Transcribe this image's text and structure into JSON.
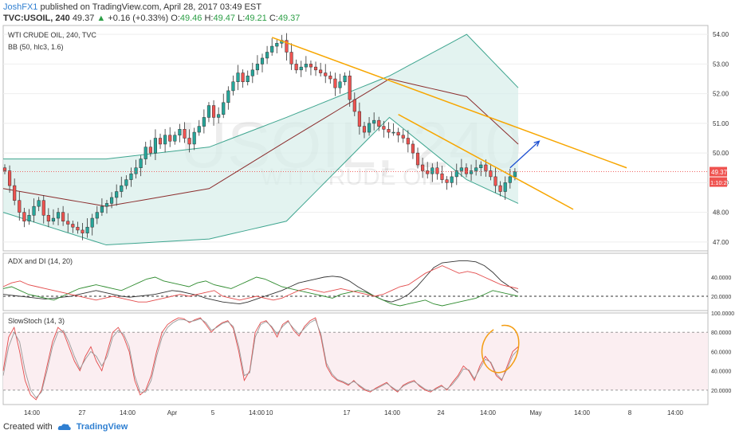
{
  "header": {
    "author": "JoshFX1",
    "published_text": "published on TradingView.com, April 28, 2017 03:49 EST",
    "symbol": "TVC:USOIL, 240",
    "last": "49.37",
    "change_arrow": "▲",
    "change": "+0.16 (+0.33%)",
    "open_label": "O:",
    "open": "49.46",
    "high_label": "H:",
    "high": "49.47",
    "low_label": "L:",
    "low": "49.21",
    "close_label": "C:",
    "close": "49.37"
  },
  "footer": {
    "created_with": "Created with",
    "brand": "TradingView"
  },
  "watermark": {
    "ticker": "USOIL, 240",
    "name": "WTI CRUDE OIL"
  },
  "colors": {
    "up": "#26a69a",
    "down": "#ef5350",
    "bb": "#3ea58f",
    "bb_fill": "#d7eee9",
    "bb_mid": "#8b2d2d",
    "trend": "#f7a600",
    "arrow": "#1e50d2",
    "adx": "#333333",
    "plus_di": "#2e8b2e",
    "minus_di": "#e34b4b",
    "stoch_k": "#e34b4b",
    "stoch_d": "#999999",
    "stoch_fill": "#fbeef1",
    "price_tag": "#ef5350",
    "highlight": "#f39c12"
  },
  "chart_data": [
    {
      "type": "candlestick",
      "title": "WTI CRUDE OIL, 240, TVC",
      "indicator_label": "BB (50, hlc3, 1.6)",
      "ylim": [
        46.7,
        54.3
      ],
      "yticks": [
        "47.00",
        "48.00",
        "49.00",
        "50.00",
        "51.00",
        "52.00",
        "53.00",
        "54.00"
      ],
      "xlabels": [
        "14:00",
        "27",
        "14:00",
        "Apr",
        "5",
        "14:00",
        "10",
        "17",
        "14:00",
        "24",
        "14:00",
        "May",
        "14:00",
        "8",
        "14:00"
      ],
      "last_price": "49.37",
      "countdown": "1:10:29",
      "closes": [
        49.4,
        48.9,
        48.4,
        48.0,
        47.7,
        47.9,
        48.2,
        48.4,
        47.9,
        47.7,
        47.8,
        48.0,
        47.7,
        47.6,
        47.5,
        47.4,
        47.3,
        47.5,
        47.8,
        48.0,
        48.2,
        48.3,
        48.5,
        48.7,
        48.9,
        49.1,
        49.3,
        49.5,
        49.8,
        50.2,
        50.0,
        50.5,
        50.3,
        50.6,
        50.4,
        50.6,
        50.8,
        50.5,
        50.3,
        50.7,
        50.9,
        51.2,
        51.6,
        51.2,
        51.3,
        51.7,
        52.1,
        52.4,
        52.7,
        52.4,
        52.6,
        52.8,
        53.0,
        53.2,
        53.4,
        53.6,
        53.7,
        53.8,
        53.4,
        53.0,
        52.8,
        52.9,
        53.0,
        52.9,
        52.8,
        52.7,
        52.6,
        52.5,
        52.2,
        52.4,
        52.6,
        51.8,
        51.4,
        50.9,
        50.7,
        51.0,
        51.1,
        50.9,
        50.8,
        50.7,
        50.7,
        50.6,
        50.5,
        50.3,
        50.0,
        49.6,
        49.4,
        49.3,
        49.5,
        49.3,
        49.1,
        49.0,
        49.2,
        49.4,
        49.5,
        49.3,
        49.4,
        49.5,
        49.6,
        49.4,
        49.2,
        48.9,
        48.7,
        49.0,
        49.2,
        49.37
      ],
      "bb_upper": {
        "x": [
          0,
          0.2,
          0.4,
          0.55,
          0.75,
          0.9,
          1.0
        ],
        "y": [
          49.8,
          49.8,
          50.2,
          51.2,
          52.6,
          54.0,
          52.2
        ]
      },
      "bb_lower": {
        "x": [
          0,
          0.2,
          0.4,
          0.55,
          0.75,
          0.9,
          1.0
        ],
        "y": [
          48.0,
          46.9,
          47.1,
          47.7,
          51.2,
          49.1,
          48.3
        ]
      },
      "bb_middle": {
        "x": [
          0,
          0.2,
          0.4,
          0.55,
          0.75,
          0.9,
          1.0
        ],
        "y": [
          48.8,
          48.2,
          48.8,
          50.4,
          52.5,
          51.9,
          50.3
        ]
      },
      "trendlines": [
        {
          "x": [
            55,
            128
          ],
          "y": [
            53.9,
            49.5
          ]
        },
        {
          "x": [
            81,
            117
          ],
          "y": [
            51.3,
            48.1
          ]
        }
      ],
      "arrow": {
        "x": [
          104,
          110
        ],
        "y": [
          49.5,
          50.4
        ]
      }
    },
    {
      "type": "line",
      "title": "ADX and DI (14, 20)",
      "ylim": [
        5,
        65
      ],
      "yticks": [
        "40.0000",
        "20.0000"
      ],
      "threshold": 20,
      "series": [
        {
          "key": "adx",
          "values": [
            22,
            21,
            20,
            19,
            18,
            17,
            18,
            19,
            20,
            22,
            24,
            26,
            24,
            22,
            20,
            19,
            20,
            21,
            22,
            24,
            26,
            25,
            23,
            21,
            18,
            16,
            14,
            13,
            12,
            14,
            17,
            20,
            23,
            26,
            30,
            34,
            36,
            38,
            40,
            41,
            40,
            36,
            30,
            25,
            20,
            16,
            14,
            17,
            22,
            30,
            40,
            50,
            55,
            56,
            57,
            57,
            56,
            52,
            45,
            36,
            30,
            24
          ]
        },
        {
          "key": "plus_di",
          "values": [
            28,
            30,
            26,
            22,
            20,
            18,
            16,
            20,
            24,
            28,
            30,
            32,
            30,
            28,
            26,
            30,
            34,
            38,
            40,
            36,
            34,
            32,
            30,
            34,
            36,
            32,
            30,
            28,
            32,
            36,
            40,
            38,
            34,
            30,
            28,
            26,
            24,
            22,
            20,
            18,
            22,
            24,
            26,
            24,
            20,
            16,
            12,
            10,
            12,
            14,
            16,
            12,
            10,
            12,
            14,
            16,
            18,
            22,
            26,
            24,
            22,
            20
          ]
        },
        {
          "key": "minus_di",
          "values": [
            30,
            34,
            36,
            32,
            30,
            28,
            26,
            24,
            22,
            20,
            18,
            16,
            18,
            20,
            18,
            16,
            14,
            14,
            16,
            18,
            20,
            22,
            20,
            22,
            24,
            26,
            20,
            18,
            16,
            18,
            20,
            18,
            16,
            18,
            22,
            26,
            28,
            26,
            24,
            26,
            28,
            26,
            24,
            22,
            20,
            22,
            26,
            30,
            32,
            38,
            44,
            48,
            52,
            48,
            44,
            46,
            44,
            40,
            36,
            32,
            30,
            28
          ]
        }
      ]
    },
    {
      "type": "line",
      "title": "SlowStoch (14, 3)",
      "ylim": [
        5,
        100
      ],
      "yticks": [
        "100.0000",
        "80.0000",
        "60.0000",
        "40.0000",
        "20.0000"
      ],
      "band": [
        20,
        80
      ],
      "series": [
        {
          "key": "stoch_k",
          "values": [
            40,
            75,
            85,
            60,
            30,
            15,
            10,
            20,
            45,
            70,
            85,
            80,
            65,
            50,
            40,
            55,
            65,
            50,
            40,
            60,
            80,
            85,
            75,
            60,
            30,
            15,
            20,
            35,
            60,
            80,
            88,
            92,
            95,
            94,
            90,
            93,
            95,
            88,
            80,
            86,
            90,
            92,
            84,
            60,
            30,
            40,
            80,
            90,
            92,
            85,
            75,
            88,
            92,
            82,
            76,
            86,
            92,
            95,
            75,
            45,
            35,
            30,
            28,
            25,
            30,
            24,
            20,
            18,
            22,
            25,
            28,
            22,
            18,
            25,
            28,
            30,
            24,
            20,
            18,
            22,
            25,
            20,
            28,
            35,
            45,
            40,
            30,
            45,
            55,
            48,
            35,
            30,
            45,
            60,
            65
          ]
        },
        {
          "key": "stoch_d",
          "values": [
            35,
            65,
            80,
            70,
            40,
            20,
            12,
            18,
            40,
            65,
            80,
            82,
            70,
            55,
            42,
            52,
            60,
            55,
            45,
            55,
            75,
            82,
            78,
            65,
            35,
            18,
            18,
            30,
            55,
            75,
            85,
            90,
            93,
            93,
            91,
            92,
            94,
            90,
            82,
            85,
            89,
            91,
            86,
            65,
            35,
            38,
            75,
            88,
            91,
            86,
            78,
            86,
            91,
            84,
            78,
            84,
            90,
            93,
            78,
            48,
            37,
            31,
            29,
            26,
            29,
            25,
            21,
            19,
            21,
            24,
            27,
            23,
            19,
            24,
            27,
            29,
            25,
            21,
            19,
            21,
            24,
            21,
            26,
            33,
            42,
            41,
            32,
            42,
            52,
            49,
            37,
            31,
            42,
            56,
            62
          ]
        }
      ]
    }
  ]
}
